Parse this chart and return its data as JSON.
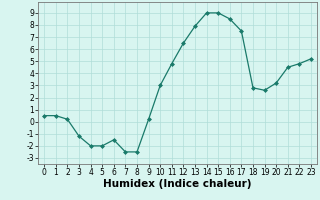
{
  "x": [
    0,
    1,
    2,
    3,
    4,
    5,
    6,
    7,
    8,
    9,
    10,
    11,
    12,
    13,
    14,
    15,
    16,
    17,
    18,
    19,
    20,
    21,
    22,
    23
  ],
  "y": [
    0.5,
    0.5,
    0.2,
    -1.2,
    -2.0,
    -2.0,
    -1.5,
    -2.5,
    -2.5,
    0.2,
    3.0,
    4.8,
    6.5,
    7.9,
    9.0,
    9.0,
    8.5,
    7.5,
    2.8,
    2.6,
    3.2,
    4.5,
    4.8,
    5.2
  ],
  "xlabel": "Humidex (Indice chaleur)",
  "xlim": [
    -0.5,
    23.5
  ],
  "ylim": [
    -3.5,
    9.9
  ],
  "yticks": [
    -3,
    -2,
    -1,
    0,
    1,
    2,
    3,
    4,
    5,
    6,
    7,
    8,
    9
  ],
  "xticks": [
    0,
    1,
    2,
    3,
    4,
    5,
    6,
    7,
    8,
    9,
    10,
    11,
    12,
    13,
    14,
    15,
    16,
    17,
    18,
    19,
    20,
    21,
    22,
    23
  ],
  "line_color": "#1a7a6a",
  "marker_color": "#1a7a6a",
  "bg_color": "#d8f5f0",
  "grid_color": "#b0ddd8",
  "tick_fontsize": 5.5,
  "xlabel_fontsize": 7.5
}
